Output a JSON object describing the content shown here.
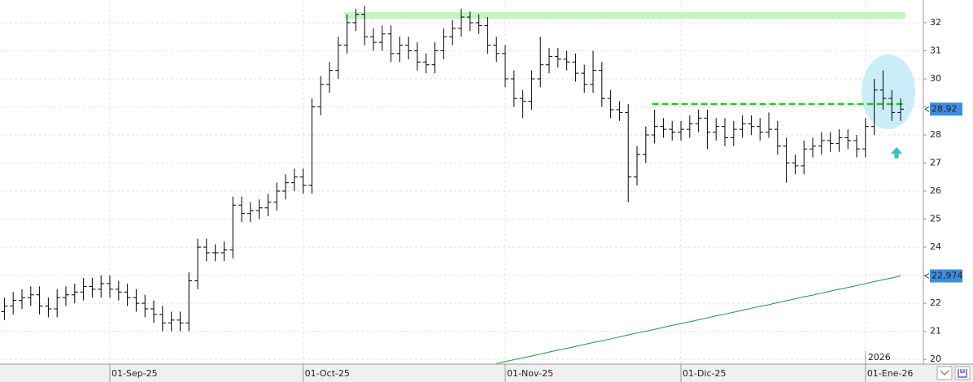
{
  "chart_data": {
    "type": "ohlc",
    "xlim": [
      -0.5,
      104.59
    ],
    "ylim": [
      19.83,
      32.81
    ],
    "yticks": [
      20,
      21,
      22,
      23,
      24,
      25,
      26,
      27,
      28,
      29,
      30,
      31,
      32
    ],
    "xticks": [
      {
        "value": 12,
        "label": "01-Sep-25"
      },
      {
        "value": 34,
        "label": "01-Oct-25"
      },
      {
        "value": 57,
        "label": "01-Nov-25"
      },
      {
        "value": 77,
        "label": "01-Dic-25"
      },
      {
        "value": 98,
        "label": "01-Ene-26"
      }
    ],
    "year_label": {
      "value": 98,
      "label": "2026"
    },
    "grid": true,
    "color": "#000000",
    "open": [
      21.7,
      21.9,
      22.1,
      22.2,
      22.3,
      21.9,
      21.8,
      22.2,
      22.3,
      22.4,
      22.6,
      22.5,
      22.7,
      22.5,
      22.4,
      22.2,
      22.0,
      21.8,
      21.6,
      21.3,
      21.4,
      21.3,
      22.8,
      24.0,
      23.8,
      23.8,
      23.9,
      25.5,
      25.2,
      25.3,
      25.4,
      25.6,
      26.0,
      26.3,
      26.5,
      26.2,
      29.0,
      29.8,
      30.3,
      31.2,
      32.0,
      32.3,
      31.5,
      31.3,
      31.6,
      30.9,
      31.2,
      31.0,
      30.6,
      30.5,
      31.0,
      31.5,
      31.8,
      32.2,
      32.0,
      31.9,
      31.2,
      30.9,
      30.0,
      29.3,
      29.2,
      30.0,
      30.5,
      30.8,
      30.7,
      30.6,
      30.2,
      29.8,
      30.3,
      29.3,
      28.9,
      28.8,
      26.5,
      27.3,
      28.0,
      28.3,
      28.2,
      28.1,
      28.2,
      28.4,
      28.6,
      28.1,
      28.3,
      27.9,
      28.2,
      28.4,
      28.3,
      28.1,
      28.2,
      27.6,
      27.0,
      26.9,
      27.5,
      27.6,
      27.8,
      27.7,
      27.9,
      27.8,
      27.5,
      28.3,
      29.6,
      29.3,
      28.8
    ],
    "high": [
      22.2,
      22.4,
      22.5,
      22.6,
      22.6,
      22.2,
      22.5,
      22.6,
      22.7,
      22.9,
      22.9,
      23.0,
      23.0,
      22.8,
      22.7,
      22.5,
      22.3,
      22.1,
      21.9,
      21.7,
      21.7,
      23.1,
      24.3,
      24.3,
      24.1,
      24.2,
      25.8,
      25.8,
      25.6,
      25.7,
      25.9,
      26.3,
      26.6,
      26.8,
      26.8,
      29.3,
      30.1,
      30.6,
      31.5,
      32.3,
      32.5,
      32.6,
      31.8,
      31.9,
      31.9,
      31.5,
      31.5,
      31.3,
      30.9,
      31.3,
      31.8,
      32.1,
      32.5,
      32.4,
      32.3,
      32.2,
      31.5,
      31.2,
      30.3,
      29.6,
      30.3,
      31.5,
      31.1,
      31.1,
      31.0,
      30.9,
      30.5,
      31.0,
      30.6,
      29.6,
      29.2,
      29.1,
      27.6,
      28.3,
      28.9,
      28.6,
      28.5,
      28.5,
      28.7,
      28.9,
      28.9,
      28.6,
      28.6,
      28.5,
      28.7,
      28.7,
      28.6,
      28.8,
      28.5,
      27.9,
      27.3,
      27.8,
      27.9,
      28.1,
      28.1,
      28.2,
      28.2,
      28.0,
      28.6,
      30.0,
      30.3,
      29.6,
      29.3
    ],
    "low": [
      21.4,
      21.6,
      21.8,
      21.9,
      21.6,
      21.5,
      21.5,
      21.9,
      22.0,
      22.1,
      22.2,
      22.2,
      22.2,
      22.1,
      21.9,
      21.7,
      21.5,
      21.3,
      21.0,
      21.0,
      21.0,
      21.0,
      22.5,
      23.5,
      23.5,
      23.5,
      23.6,
      24.9,
      24.9,
      25.0,
      25.1,
      25.3,
      25.7,
      26.0,
      25.9,
      25.9,
      28.7,
      29.5,
      30.0,
      30.9,
      31.7,
      31.2,
      31.0,
      31.0,
      30.6,
      30.6,
      30.7,
      30.3,
      30.2,
      30.2,
      30.7,
      31.2,
      31.5,
      31.7,
      31.6,
      30.9,
      30.6,
      29.7,
      29.0,
      28.6,
      28.9,
      29.7,
      30.2,
      30.4,
      30.3,
      29.9,
      29.5,
      29.5,
      29.0,
      28.6,
      28.5,
      25.6,
      26.2,
      27.0,
      27.7,
      27.9,
      27.8,
      27.8,
      27.9,
      28.1,
      27.5,
      27.8,
      27.6,
      27.6,
      27.9,
      28.0,
      27.8,
      27.9,
      27.3,
      26.3,
      26.6,
      26.6,
      27.2,
      27.3,
      27.4,
      27.4,
      27.5,
      27.2,
      27.2,
      28.0,
      28.9,
      28.5,
      28.5
    ],
    "close": [
      21.9,
      22.1,
      22.2,
      22.3,
      21.9,
      21.8,
      22.2,
      22.3,
      22.4,
      22.6,
      22.5,
      22.7,
      22.5,
      22.4,
      22.2,
      22.0,
      21.8,
      21.6,
      21.3,
      21.4,
      21.3,
      22.8,
      24.0,
      23.8,
      23.8,
      23.9,
      25.5,
      25.2,
      25.3,
      25.4,
      25.6,
      26.0,
      26.3,
      26.5,
      26.2,
      29.0,
      29.8,
      30.3,
      31.2,
      32.0,
      32.3,
      31.5,
      31.3,
      31.6,
      30.9,
      31.2,
      31.0,
      30.6,
      30.5,
      31.0,
      31.5,
      31.8,
      32.2,
      32.0,
      31.9,
      31.2,
      30.9,
      30.0,
      29.3,
      29.2,
      30.0,
      30.5,
      30.8,
      30.7,
      30.6,
      30.2,
      29.8,
      30.3,
      29.3,
      28.9,
      28.8,
      26.5,
      27.3,
      28.0,
      28.3,
      28.2,
      28.1,
      28.2,
      28.4,
      28.6,
      28.1,
      28.3,
      27.9,
      28.2,
      28.4,
      28.3,
      28.1,
      28.2,
      27.6,
      27.0,
      26.9,
      27.5,
      27.6,
      27.8,
      27.7,
      27.9,
      27.8,
      27.5,
      28.3,
      29.6,
      29.3,
      28.8,
      28.92
    ],
    "ma": {
      "color": "#1a9a3a",
      "values": [
        null,
        null,
        null,
        null,
        null,
        null,
        null,
        null,
        null,
        null,
        null,
        null,
        null,
        null,
        null,
        null,
        null,
        null,
        null,
        null,
        null,
        null,
        null,
        null,
        null,
        null,
        null,
        null,
        null,
        null,
        null,
        null,
        null,
        null,
        null,
        null,
        null,
        null,
        null,
        null,
        null,
        null,
        null,
        null,
        null,
        null,
        null,
        null,
        null,
        null,
        null,
        null,
        null,
        null,
        null,
        null,
        19.85,
        19.92,
        19.99,
        20.05,
        20.12,
        20.19,
        20.26,
        20.33,
        20.39,
        20.46,
        20.53,
        20.6,
        20.66,
        20.73,
        20.8,
        20.87,
        20.94,
        21.0,
        21.07,
        21.14,
        21.21,
        21.28,
        21.34,
        21.41,
        21.48,
        21.55,
        21.61,
        21.68,
        21.75,
        21.82,
        21.89,
        21.95,
        22.02,
        22.09,
        22.16,
        22.23,
        22.29,
        22.36,
        22.43,
        22.5,
        22.56,
        22.63,
        22.7,
        22.77,
        22.84,
        22.9,
        22.974
      ]
    },
    "price_tag": {
      "value": 28.92,
      "label": "28,92",
      "color": "#3d8ee0"
    },
    "ma_tag": {
      "value": 22.974,
      "label": "22,974",
      "color": "#3d8ee0"
    },
    "levels": [
      {
        "value": 32.26,
        "start": 39,
        "color": "#c2f5c2",
        "style": "band"
      },
      {
        "value": 29.1,
        "start": 74,
        "color": "#22cc22",
        "style": "dashed"
      }
    ]
  }
}
